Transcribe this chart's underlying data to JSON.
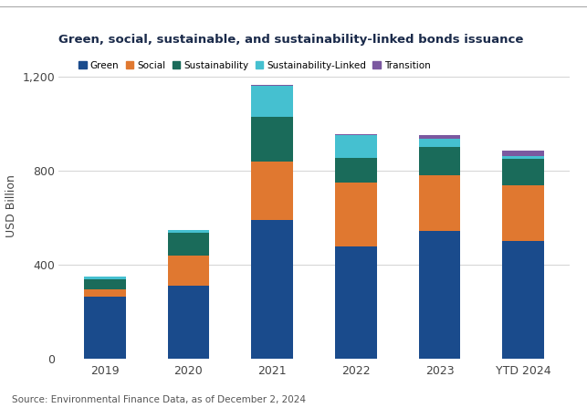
{
  "title": "Green, social, sustainable, and sustainability-linked bonds issuance",
  "categories": [
    "2019",
    "2020",
    "2021",
    "2022",
    "2023",
    "YTD 2024"
  ],
  "series": {
    "Green": [
      265,
      310,
      590,
      480,
      545,
      500
    ],
    "Social": [
      30,
      130,
      250,
      270,
      235,
      240
    ],
    "Sustainability": [
      45,
      95,
      190,
      105,
      120,
      110
    ],
    "Sustainability-Linked": [
      10,
      12,
      130,
      95,
      35,
      12
    ],
    "Transition": [
      2,
      3,
      5,
      5,
      15,
      22
    ]
  },
  "colors": {
    "Green": "#1a4b8c",
    "Social": "#e07830",
    "Sustainability": "#1a6b5a",
    "Sustainability-Linked": "#45c0d0",
    "Transition": "#7b58a0"
  },
  "ylabel": "USD Billion",
  "ylim": [
    0,
    1300
  ],
  "yticks": [
    0,
    400,
    800,
    1200
  ],
  "ytick_labels": [
    "0",
    "400",
    "800",
    "1,200"
  ],
  "source": "Source: Environmental Finance Data, as of December 2, 2024",
  "background_color": "#ffffff",
  "grid_color": "#cccccc",
  "bar_width": 0.5,
  "title_color": "#1a2a4a",
  "tick_color": "#444444"
}
